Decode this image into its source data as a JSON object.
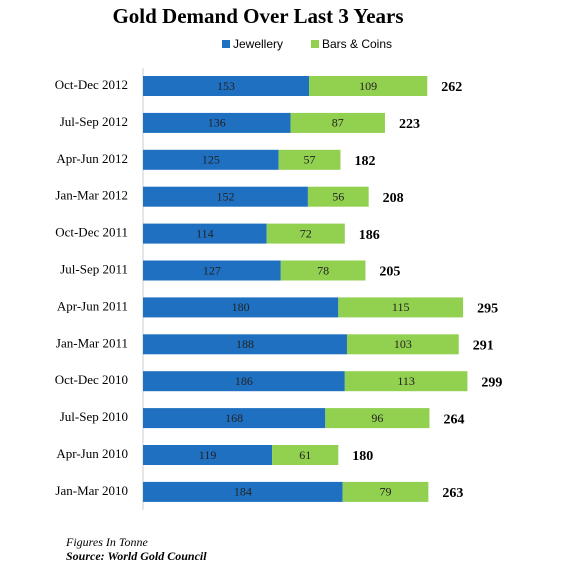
{
  "chart_data": {
    "type": "stacked-barh",
    "title": "Gold Demand Over Last 3 Years",
    "categories": [
      "Oct-Dec 2012",
      "Jul-Sep 2012",
      "Apr-Jun 2012",
      "Jan-Mar 2012",
      "Oct-Dec 2011",
      "Jul-Sep 2011",
      "Apr-Jun 2011",
      "Jan-Mar 2011",
      "Oct-Dec 2010",
      "Jul-Sep 2010",
      "Apr-Jun 2010",
      "Jan-Mar 2010"
    ],
    "series": [
      {
        "name": "Jewellery",
        "color": "#1f70c1",
        "values": [
          153,
          136,
          125,
          152,
          114,
          127,
          180,
          188,
          186,
          168,
          119,
          184
        ]
      },
      {
        "name": "Bars & Coins",
        "color": "#92d050",
        "values": [
          109,
          87,
          57,
          56,
          72,
          78,
          115,
          103,
          113,
          96,
          61,
          79
        ]
      }
    ],
    "totals": [
      262,
      223,
      182,
      208,
      186,
      205,
      295,
      291,
      299,
      264,
      180,
      263
    ],
    "note": "Figures In Tonne",
    "source": "Source: World Gold Council"
  }
}
